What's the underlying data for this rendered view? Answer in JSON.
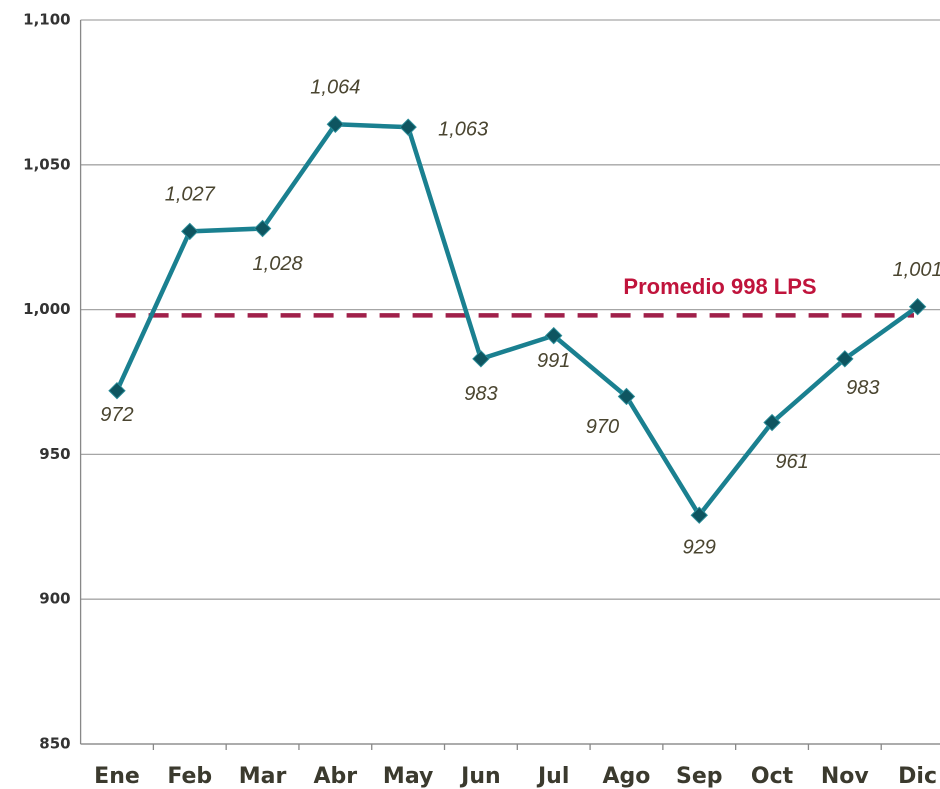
{
  "chart_data": {
    "type": "line",
    "categories": [
      "Ene",
      "Feb",
      "Mar",
      "Abr",
      "May",
      "Jun",
      "Jul",
      "Ago",
      "Sep",
      "Oct",
      "Nov",
      "Dic"
    ],
    "series": [
      {
        "color": "#1a8090",
        "values": [
          972,
          1027,
          1028,
          1064,
          1063,
          983,
          991,
          970,
          929,
          961,
          983,
          1001
        ],
        "value_labels": [
          "972",
          "1,027",
          "1,028",
          "1,064",
          "1,063",
          "983",
          "991",
          "970",
          "929",
          "961",
          "983",
          "1,001"
        ]
      }
    ],
    "average": {
      "value": 998,
      "label": "Promedio 998 LPS",
      "color": "#a0204a"
    },
    "ylim": [
      850,
      1100
    ],
    "yticks": [
      {
        "value": 850,
        "label": "850"
      },
      {
        "value": 900,
        "label": "900"
      },
      {
        "value": 950,
        "label": "950"
      },
      {
        "value": 1000,
        "label": "1,000"
      },
      {
        "value": 1050,
        "label": "1,050"
      },
      {
        "value": 1100,
        "label": "1,100"
      }
    ],
    "grid": true
  }
}
